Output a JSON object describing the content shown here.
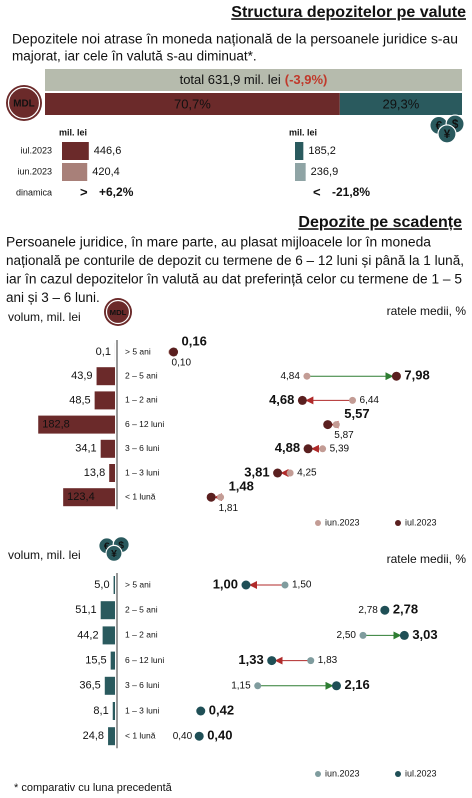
{
  "header": {
    "title": "Structura depozitelor pe valute"
  },
  "intro": [
    "Depozitele noi atrase în moneda națională de la persoanele juridice s-au",
    "majorat, iar cele în valută s-au diminuat*."
  ],
  "icons": {
    "mdl": "MDL",
    "fx": [
      "€",
      "$",
      "¥"
    ]
  },
  "section2": {
    "title": "Depozite pe scadențe",
    "text": [
      "Persoanele juridice, în mare parte, au plasat mijloacele lor în moneda",
      "națională pe conturile de depozit cu termene de 6 – 12 luni și până la 1 lună,",
      "iar în cazul depozitelor în valută au dat preferință celor cu termene de 1 – 5",
      "ani și 3 – 6 luni."
    ]
  },
  "chart_data": [
    {
      "type": "split",
      "total_label": "total 631,9 mil. lei",
      "total_change": "(-3,9%)",
      "total_color": "#b6bbad",
      "values": [
        70.7,
        29.3
      ],
      "value_labels": [
        "70,7%",
        "29,3%"
      ],
      "colors": [
        "#6b2a2a",
        "#2a5a5e"
      ]
    },
    {
      "type": "monthly",
      "unit": "mil. lei",
      "categories": [
        "iul.2023",
        "iun.2023"
      ],
      "change_title": "dinamica",
      "series": [
        {
          "colors": [
            "#6b2a2a",
            "#a88079"
          ],
          "values": [
            446.6,
            420.4
          ],
          "value_labels": [
            "446,6",
            "420,4"
          ],
          "change": 6.2,
          "change_label": "+6,2%",
          "change_symbol": ">",
          "change_color": "#2e7d32"
        },
        {
          "colors": [
            "#2a5a5e",
            "#8fa4a5"
          ],
          "values": [
            185.2,
            236.9
          ],
          "value_labels": [
            "185,2",
            "236,9"
          ],
          "change": -21.8,
          "change_label": "-21,8%",
          "change_symbol": "<",
          "change_color": "#b02a2a"
        }
      ]
    },
    {
      "type": "dumbbell",
      "icon": "mdl",
      "volume_title": "volum, mil. lei",
      "rate_title": "ratele medii, %",
      "categories": [
        "> 5 ani",
        "2 – 5 ani",
        "1 – 2 ani",
        "6 – 12 luni",
        "3 – 6 luni",
        "1 – 3 luni",
        "< 1 lună"
      ],
      "volume": {
        "color": "#6b2a2a",
        "values": [
          0.1,
          43.9,
          48.5,
          182.8,
          34.1,
          13.8,
          123.4
        ],
        "value_labels": [
          "0,1",
          "43,9",
          "48,5",
          "182,8",
          "34,1",
          "13,8",
          "123,4"
        ]
      },
      "series": [
        {
          "name": "iun.2023",
          "color": "#c39c95",
          "values": [
            0.1,
            4.84,
            6.44,
            5.87,
            5.39,
            4.25,
            1.81
          ],
          "value_labels": [
            "0,10",
            "4,84",
            "6,44",
            "5,87",
            "5,39",
            "4,25",
            "1,81"
          ]
        },
        {
          "name": "iul.2023",
          "color": "#5a1f1f",
          "values": [
            0.16,
            7.98,
            4.68,
            5.57,
            4.88,
            3.81,
            1.48
          ],
          "value_labels": [
            "0,16",
            "7,98",
            "4,68",
            "5,57",
            "4,88",
            "3,81",
            "1,48"
          ]
        }
      ]
    },
    {
      "type": "dumbbell",
      "icon": "fx",
      "volume_title": "volum, mil. lei",
      "rate_title": "ratele medii, %",
      "categories": [
        "> 5 ani",
        "2 – 5 ani",
        "1 – 2 ani",
        "6 – 12 luni",
        "3 – 6 luni",
        "1 – 3 luni",
        "< 1 lună"
      ],
      "volume": {
        "color": "#2a5a5e",
        "values": [
          5.0,
          51.1,
          44.2,
          15.5,
          36.5,
          8.1,
          24.8
        ],
        "value_labels": [
          "5,0",
          "51,1",
          "44,2",
          "15,5",
          "36,5",
          "8,1",
          "24,8"
        ]
      },
      "series": [
        {
          "name": "iun.2023",
          "color": "#7f9c9e",
          "values": [
            1.5,
            2.78,
            2.5,
            1.83,
            1.15,
            null,
            0.4
          ],
          "value_labels": [
            "1,50",
            "2,78",
            "2,50",
            "1,83",
            "1,15",
            null,
            "0,40"
          ]
        },
        {
          "name": "iul.2023",
          "color": "#1f4f56",
          "values": [
            1.0,
            2.78,
            3.03,
            1.33,
            2.16,
            0.42,
            0.4
          ],
          "value_labels": [
            "1,00",
            "2,78",
            "3,03",
            "1,33",
            "2,16",
            "0,42",
            "0,40"
          ]
        }
      ]
    }
  ],
  "footnote": "* comparativ cu luna precedentă"
}
